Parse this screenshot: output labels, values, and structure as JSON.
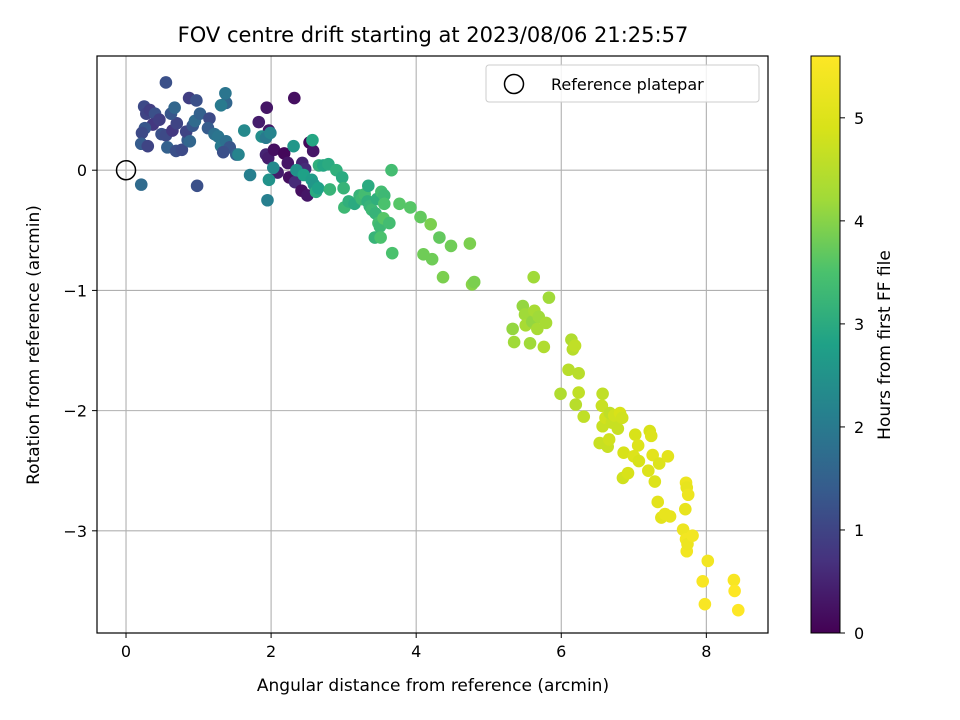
{
  "chart_data": {
    "type": "scatter",
    "title": "FOV centre drift starting at 2023/08/06 21:25:57",
    "xlabel": "Angular distance from reference (arcmin)",
    "ylabel": "Rotation from reference (arcmin)",
    "xlim": [
      -0.4,
      8.85
    ],
    "ylim": [
      -3.85,
      0.95
    ],
    "x_ticks": [
      0,
      2,
      4,
      6,
      8
    ],
    "y_ticks": [
      -3,
      -2,
      -1,
      0
    ],
    "grid": true,
    "legend_position": "top-right",
    "colormap": "viridis",
    "colorbar": {
      "label": "Hours from first FF file",
      "range": [
        0,
        5.6
      ],
      "ticks": [
        0,
        1,
        2,
        3,
        4,
        5
      ]
    },
    "reference": {
      "label": "Reference platepar",
      "x": 0,
      "y": 0,
      "marker": "open-circle"
    },
    "series": [
      {
        "points": [
          {
            "x": 1.94,
            "y": 0.52,
            "c": 0.3
          },
          {
            "x": 2.32,
            "y": 0.6,
            "c": 0.2
          },
          {
            "x": 1.83,
            "y": 0.4,
            "c": 0.4
          },
          {
            "x": 1.97,
            "y": 0.33,
            "c": 0.3
          },
          {
            "x": 1.93,
            "y": 0.13,
            "c": 0.5
          },
          {
            "x": 1.96,
            "y": 0.1,
            "c": 0.4
          },
          {
            "x": 2.04,
            "y": 0.17,
            "c": 0.2
          },
          {
            "x": 2.18,
            "y": 0.14,
            "c": 0.1
          },
          {
            "x": 2.23,
            "y": 0.06,
            "c": 0.3
          },
          {
            "x": 2.09,
            "y": -0.02,
            "c": 0.4
          },
          {
            "x": 2.25,
            "y": -0.06,
            "c": 0.2
          },
          {
            "x": 2.33,
            "y": -0.1,
            "c": 0.6
          },
          {
            "x": 2.42,
            "y": -0.17,
            "c": 0.2
          },
          {
            "x": 2.5,
            "y": -0.21,
            "c": 0.3
          },
          {
            "x": 2.43,
            "y": 0.06,
            "c": 0.5
          },
          {
            "x": 2.53,
            "y": 0.23,
            "c": 0.1
          },
          {
            "x": 2.58,
            "y": 0.16,
            "c": 0.3
          },
          {
            "x": 2.47,
            "y": 0.01,
            "c": 0.6
          },
          {
            "x": 0.55,
            "y": 0.73,
            "c": 1.2
          },
          {
            "x": 0.25,
            "y": 0.53,
            "c": 1.1
          },
          {
            "x": 0.28,
            "y": 0.47,
            "c": 1.0
          },
          {
            "x": 0.33,
            "y": 0.5,
            "c": 0.9
          },
          {
            "x": 0.4,
            "y": 0.47,
            "c": 1.2
          },
          {
            "x": 0.37,
            "y": 0.38,
            "c": 0.8
          },
          {
            "x": 0.26,
            "y": 0.35,
            "c": 1.3
          },
          {
            "x": 0.22,
            "y": 0.31,
            "c": 1.1
          },
          {
            "x": 0.21,
            "y": 0.22,
            "c": 1.4
          },
          {
            "x": 0.3,
            "y": 0.2,
            "c": 1.0
          },
          {
            "x": 0.46,
            "y": 0.42,
            "c": 0.9
          },
          {
            "x": 0.49,
            "y": 0.3,
            "c": 1.2
          },
          {
            "x": 0.55,
            "y": 0.29,
            "c": 1.1
          },
          {
            "x": 0.57,
            "y": 0.19,
            "c": 1.5
          },
          {
            "x": 0.64,
            "y": 0.33,
            "c": 0.8
          },
          {
            "x": 0.7,
            "y": 0.39,
            "c": 1.0
          },
          {
            "x": 0.62,
            "y": 0.47,
            "c": 1.3
          },
          {
            "x": 0.67,
            "y": 0.52,
            "c": 1.6
          },
          {
            "x": 0.69,
            "y": 0.16,
            "c": 1.2
          },
          {
            "x": 0.77,
            "y": 0.17,
            "c": 1.1
          },
          {
            "x": 0.85,
            "y": 0.25,
            "c": 1.4
          },
          {
            "x": 0.83,
            "y": 0.32,
            "c": 1.0
          },
          {
            "x": 0.87,
            "y": 0.6,
            "c": 0.9
          },
          {
            "x": 0.92,
            "y": 0.37,
            "c": 1.3
          },
          {
            "x": 0.95,
            "y": 0.41,
            "c": 1.7
          },
          {
            "x": 0.97,
            "y": 0.58,
            "c": 1.2
          },
          {
            "x": 1.02,
            "y": 0.47,
            "c": 1.5
          },
          {
            "x": 0.88,
            "y": 0.24,
            "c": 1.6
          },
          {
            "x": 1.15,
            "y": 0.43,
            "c": 1.1
          },
          {
            "x": 1.13,
            "y": 0.35,
            "c": 1.4
          },
          {
            "x": 1.22,
            "y": 0.3,
            "c": 1.8
          },
          {
            "x": 1.27,
            "y": 0.28,
            "c": 1.9
          },
          {
            "x": 1.31,
            "y": 0.2,
            "c": 2.0
          },
          {
            "x": 1.38,
            "y": 0.24,
            "c": 1.8
          },
          {
            "x": 1.43,
            "y": 0.19,
            "c": 1.3
          },
          {
            "x": 1.34,
            "y": 0.15,
            "c": 1.2
          },
          {
            "x": 1.38,
            "y": 0.56,
            "c": 1.6
          },
          {
            "x": 1.37,
            "y": 0.64,
            "c": 1.9
          },
          {
            "x": 1.31,
            "y": 0.54,
            "c": 2.0
          },
          {
            "x": 1.52,
            "y": 0.13,
            "c": 1.5
          },
          {
            "x": 1.55,
            "y": 0.13,
            "c": 2.2
          },
          {
            "x": 1.63,
            "y": 0.33,
            "c": 2.3
          },
          {
            "x": 0.98,
            "y": -0.13,
            "c": 1.2
          },
          {
            "x": 0.21,
            "y": -0.12,
            "c": 1.7
          },
          {
            "x": 1.71,
            "y": -0.04,
            "c": 2.1
          },
          {
            "x": 1.87,
            "y": 0.28,
            "c": 2.4
          },
          {
            "x": 1.93,
            "y": 0.27,
            "c": 2.0
          },
          {
            "x": 1.99,
            "y": 0.31,
            "c": 2.2
          },
          {
            "x": 1.97,
            "y": -0.08,
            "c": 2.5
          },
          {
            "x": 2.03,
            "y": 0.02,
            "c": 2.3
          },
          {
            "x": 1.95,
            "y": -0.25,
            "c": 2.1
          },
          {
            "x": 2.31,
            "y": 0.2,
            "c": 2.6
          },
          {
            "x": 2.35,
            "y": 0.0,
            "c": 2.5
          },
          {
            "x": 2.45,
            "y": -0.04,
            "c": 2.8
          },
          {
            "x": 2.56,
            "y": -0.08,
            "c": 2.7
          },
          {
            "x": 2.59,
            "y": -0.12,
            "c": 2.6
          },
          {
            "x": 2.57,
            "y": 0.25,
            "c": 2.9
          },
          {
            "x": 2.62,
            "y": -0.18,
            "c": 3.0
          },
          {
            "x": 2.65,
            "y": -0.15,
            "c": 2.8
          },
          {
            "x": 2.66,
            "y": 0.04,
            "c": 3.1
          },
          {
            "x": 2.72,
            "y": 0.04,
            "c": 2.9
          },
          {
            "x": 2.79,
            "y": 0.05,
            "c": 3.0
          },
          {
            "x": 2.81,
            "y": -0.16,
            "c": 3.2
          },
          {
            "x": 2.9,
            "y": 0.0,
            "c": 3.1
          },
          {
            "x": 2.98,
            "y": -0.06,
            "c": 3.0
          },
          {
            "x": 3.0,
            "y": -0.15,
            "c": 3.2
          },
          {
            "x": 3.01,
            "y": -0.31,
            "c": 3.3
          },
          {
            "x": 3.07,
            "y": -0.26,
            "c": 3.1
          },
          {
            "x": 3.15,
            "y": -0.28,
            "c": 3.0
          },
          {
            "x": 3.22,
            "y": -0.21,
            "c": 3.2
          },
          {
            "x": 3.25,
            "y": -0.24,
            "c": 3.3
          },
          {
            "x": 3.29,
            "y": -0.2,
            "c": 3.4
          },
          {
            "x": 3.33,
            "y": -0.26,
            "c": 3.1
          },
          {
            "x": 3.34,
            "y": -0.13,
            "c": 3.0
          },
          {
            "x": 3.36,
            "y": -0.3,
            "c": 3.2
          },
          {
            "x": 3.39,
            "y": -0.33,
            "c": 3.3
          },
          {
            "x": 3.44,
            "y": -0.36,
            "c": 3.2
          },
          {
            "x": 3.46,
            "y": -0.24,
            "c": 3.1
          },
          {
            "x": 3.48,
            "y": -0.44,
            "c": 3.4
          },
          {
            "x": 3.5,
            "y": -0.47,
            "c": 3.3
          },
          {
            "x": 3.43,
            "y": -0.56,
            "c": 3.2
          },
          {
            "x": 3.51,
            "y": -0.56,
            "c": 3.5
          },
          {
            "x": 3.52,
            "y": -0.18,
            "c": 3.4
          },
          {
            "x": 3.56,
            "y": -0.21,
            "c": 3.3
          },
          {
            "x": 3.56,
            "y": -0.28,
            "c": 3.5
          },
          {
            "x": 3.55,
            "y": -0.4,
            "c": 3.6
          },
          {
            "x": 3.63,
            "y": -0.44,
            "c": 3.4
          },
          {
            "x": 3.67,
            "y": -0.69,
            "c": 3.5
          },
          {
            "x": 3.66,
            "y": 0.0,
            "c": 3.4
          },
          {
            "x": 3.77,
            "y": -0.28,
            "c": 3.6
          },
          {
            "x": 3.92,
            "y": -0.31,
            "c": 3.6
          },
          {
            "x": 4.06,
            "y": -0.39,
            "c": 3.7
          },
          {
            "x": 4.1,
            "y": -0.7,
            "c": 3.8
          },
          {
            "x": 4.2,
            "y": -0.45,
            "c": 3.9
          },
          {
            "x": 4.22,
            "y": -0.74,
            "c": 3.8
          },
          {
            "x": 4.32,
            "y": -0.56,
            "c": 3.7
          },
          {
            "x": 4.37,
            "y": -0.89,
            "c": 3.9
          },
          {
            "x": 4.48,
            "y": -0.63,
            "c": 3.8
          },
          {
            "x": 4.74,
            "y": -0.61,
            "c": 3.9
          },
          {
            "x": 4.77,
            "y": -0.95,
            "c": 4.0
          },
          {
            "x": 4.8,
            "y": -0.93,
            "c": 3.9
          },
          {
            "x": 5.33,
            "y": -1.32,
            "c": 4.1
          },
          {
            "x": 5.35,
            "y": -1.43,
            "c": 4.2
          },
          {
            "x": 5.47,
            "y": -1.13,
            "c": 4.1
          },
          {
            "x": 5.5,
            "y": -1.2,
            "c": 4.2
          },
          {
            "x": 5.51,
            "y": -1.29,
            "c": 4.3
          },
          {
            "x": 5.57,
            "y": -1.44,
            "c": 4.2
          },
          {
            "x": 5.6,
            "y": -1.26,
            "c": 4.1
          },
          {
            "x": 5.63,
            "y": -1.17,
            "c": 4.3
          },
          {
            "x": 5.62,
            "y": -0.89,
            "c": 4.2
          },
          {
            "x": 5.67,
            "y": -1.32,
            "c": 4.3
          },
          {
            "x": 5.69,
            "y": -1.22,
            "c": 4.2
          },
          {
            "x": 5.76,
            "y": -1.47,
            "c": 4.4
          },
          {
            "x": 5.79,
            "y": -1.27,
            "c": 4.3
          },
          {
            "x": 5.83,
            "y": -1.06,
            "c": 4.2
          },
          {
            "x": 5.99,
            "y": -1.86,
            "c": 4.4
          },
          {
            "x": 6.1,
            "y": -1.66,
            "c": 4.5
          },
          {
            "x": 6.14,
            "y": -1.41,
            "c": 4.4
          },
          {
            "x": 6.16,
            "y": -1.49,
            "c": 4.5
          },
          {
            "x": 6.19,
            "y": -1.46,
            "c": 4.6
          },
          {
            "x": 6.2,
            "y": -1.95,
            "c": 4.5
          },
          {
            "x": 6.24,
            "y": -1.85,
            "c": 4.6
          },
          {
            "x": 6.24,
            "y": -1.69,
            "c": 4.5
          },
          {
            "x": 6.31,
            "y": -2.05,
            "c": 4.6
          },
          {
            "x": 6.53,
            "y": -2.27,
            "c": 4.7
          },
          {
            "x": 6.56,
            "y": -1.96,
            "c": 4.7
          },
          {
            "x": 6.57,
            "y": -1.86,
            "c": 4.6
          },
          {
            "x": 6.57,
            "y": -2.13,
            "c": 4.7
          },
          {
            "x": 6.61,
            "y": -2.06,
            "c": 4.8
          },
          {
            "x": 6.64,
            "y": -2.3,
            "c": 4.7
          },
          {
            "x": 6.66,
            "y": -2.24,
            "c": 4.8
          },
          {
            "x": 6.7,
            "y": -2.1,
            "c": 4.7
          },
          {
            "x": 6.67,
            "y": -2.02,
            "c": 4.6
          },
          {
            "x": 6.73,
            "y": -2.04,
            "c": 4.8
          },
          {
            "x": 6.78,
            "y": -2.15,
            "c": 4.7
          },
          {
            "x": 6.81,
            "y": -2.02,
            "c": 4.9
          },
          {
            "x": 6.84,
            "y": -2.06,
            "c": 4.8
          },
          {
            "x": 6.86,
            "y": -2.35,
            "c": 4.9
          },
          {
            "x": 6.85,
            "y": -2.56,
            "c": 4.8
          },
          {
            "x": 6.92,
            "y": -2.52,
            "c": 4.9
          },
          {
            "x": 7.0,
            "y": -2.38,
            "c": 5.0
          },
          {
            "x": 7.02,
            "y": -2.2,
            "c": 4.9
          },
          {
            "x": 7.06,
            "y": -2.29,
            "c": 5.0
          },
          {
            "x": 7.07,
            "y": -2.42,
            "c": 4.9
          },
          {
            "x": 7.2,
            "y": -2.5,
            "c": 5.0
          },
          {
            "x": 7.22,
            "y": -2.17,
            "c": 4.9
          },
          {
            "x": 7.24,
            "y": -2.21,
            "c": 5.0
          },
          {
            "x": 7.26,
            "y": -2.37,
            "c": 5.1
          },
          {
            "x": 7.29,
            "y": -2.59,
            "c": 5.0
          },
          {
            "x": 7.33,
            "y": -2.76,
            "c": 5.1
          },
          {
            "x": 7.35,
            "y": -2.44,
            "c": 5.0
          },
          {
            "x": 7.38,
            "y": -2.89,
            "c": 5.1
          },
          {
            "x": 7.43,
            "y": -2.86,
            "c": 5.2
          },
          {
            "x": 7.47,
            "y": -2.38,
            "c": 5.1
          },
          {
            "x": 7.5,
            "y": -2.88,
            "c": 5.2
          },
          {
            "x": 7.68,
            "y": -2.99,
            "c": 5.3
          },
          {
            "x": 7.71,
            "y": -2.82,
            "c": 5.2
          },
          {
            "x": 7.72,
            "y": -2.6,
            "c": 5.3
          },
          {
            "x": 7.73,
            "y": -2.64,
            "c": 5.2
          },
          {
            "x": 7.72,
            "y": -3.07,
            "c": 5.4
          },
          {
            "x": 7.75,
            "y": -2.7,
            "c": 5.3
          },
          {
            "x": 7.73,
            "y": -3.17,
            "c": 5.4
          },
          {
            "x": 7.74,
            "y": -3.11,
            "c": 5.3
          },
          {
            "x": 7.81,
            "y": -3.04,
            "c": 5.4
          },
          {
            "x": 7.95,
            "y": -3.42,
            "c": 5.5
          },
          {
            "x": 8.02,
            "y": -3.25,
            "c": 5.4
          },
          {
            "x": 7.98,
            "y": -3.61,
            "c": 5.5
          },
          {
            "x": 8.38,
            "y": -3.41,
            "c": 5.5
          },
          {
            "x": 8.39,
            "y": -3.5,
            "c": 5.6
          },
          {
            "x": 8.44,
            "y": -3.66,
            "c": 5.6
          }
        ]
      }
    ]
  }
}
